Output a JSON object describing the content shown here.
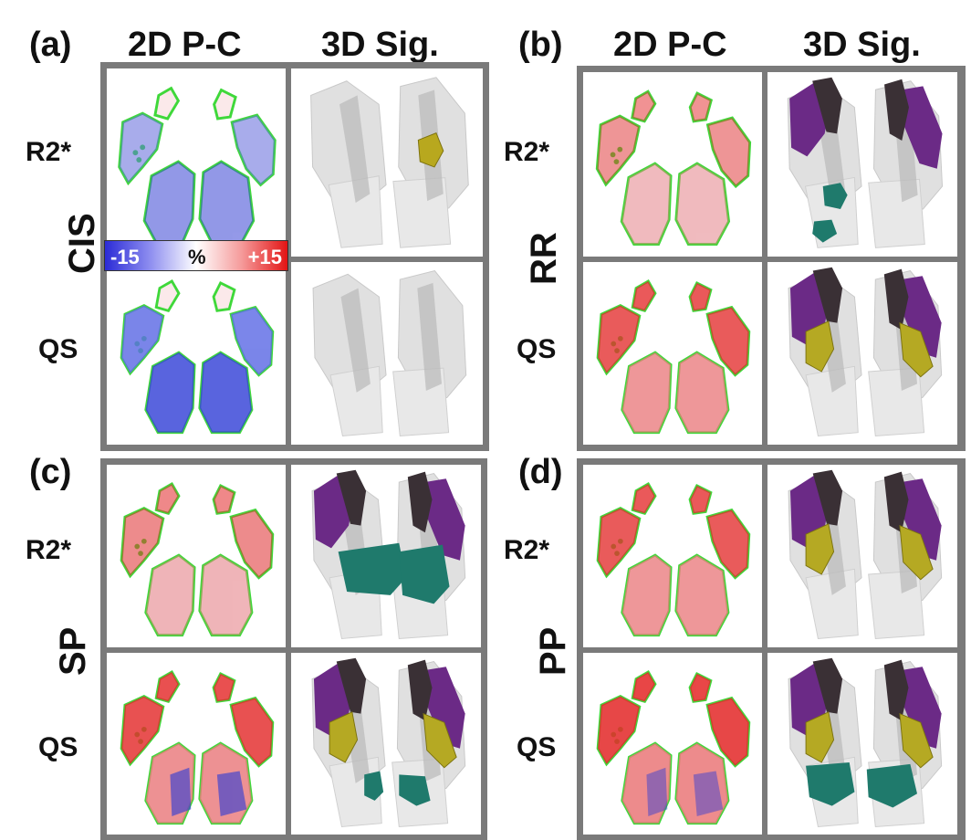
{
  "figure": {
    "panels": [
      {
        "id": "a",
        "letter": "(a)",
        "group": "CIS"
      },
      {
        "id": "b",
        "letter": "(b)",
        "group": "RR"
      },
      {
        "id": "c",
        "letter": "(c)",
        "group": "SP"
      },
      {
        "id": "d",
        "letter": "(d)",
        "group": "PP"
      }
    ],
    "column_headers": {
      "left": "2D P-C",
      "right": "3D Sig."
    },
    "row_labels": {
      "top": "R2*",
      "bottom": "QS"
    },
    "colorbar": {
      "min": "-15",
      "unit": "%",
      "max": "+15",
      "low_color": "#2b2bd6",
      "high_color": "#e31414"
    }
  }
}
